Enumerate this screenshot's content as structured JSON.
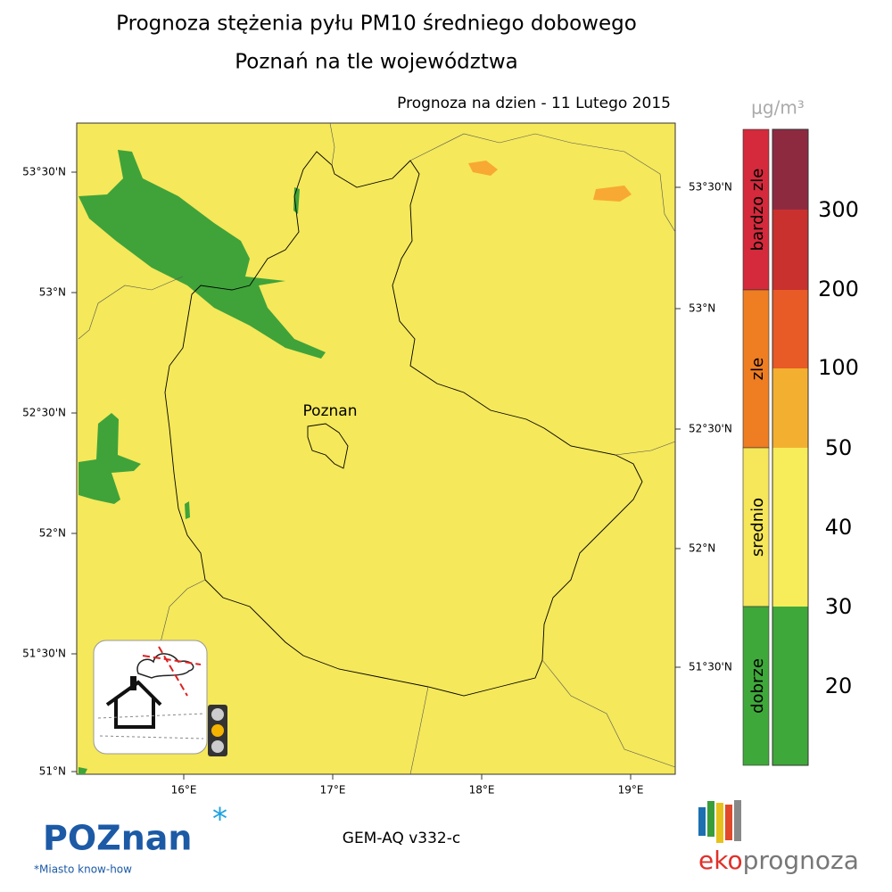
{
  "header": {
    "title": "Prognoza stężenia pyłu PM10 średniego dobowego",
    "subtitle": "Poznań na tle województwa",
    "date_line": "Prognoza na dzien -  11 Lutego 2015"
  },
  "map": {
    "left_lat_labels": [
      "53°30'N",
      "53°N",
      "52°30'N",
      "52°N",
      "51°30'N",
      "51°N"
    ],
    "right_lat_labels": [
      "53°30'N",
      "53°N",
      "52°30'N",
      "52°N",
      "51°30'N"
    ],
    "lon_labels": [
      "16°E",
      "17°E",
      "18°E",
      "19°E"
    ],
    "city_label": "Poznan"
  },
  "legend": {
    "unit": "μg/m³",
    "classes": [
      {
        "label": "bardzo zle",
        "color": "#d42a3c"
      },
      {
        "label": "zle",
        "color": "#ef7d22"
      },
      {
        "label": "srednio",
        "color": "#f5e65a"
      },
      {
        "label": "dobrze",
        "color": "#3fa83a"
      }
    ],
    "ticks": [
      "300",
      "200",
      "100",
      "50",
      "40",
      "30",
      "20"
    ]
  },
  "footer": {
    "model": "GEM-AQ v332-c",
    "city_logo": "POZnan",
    "city_slogan": "*Miasto know-how",
    "brand_prefix": "eko",
    "brand_suffix": "prognoza"
  }
}
